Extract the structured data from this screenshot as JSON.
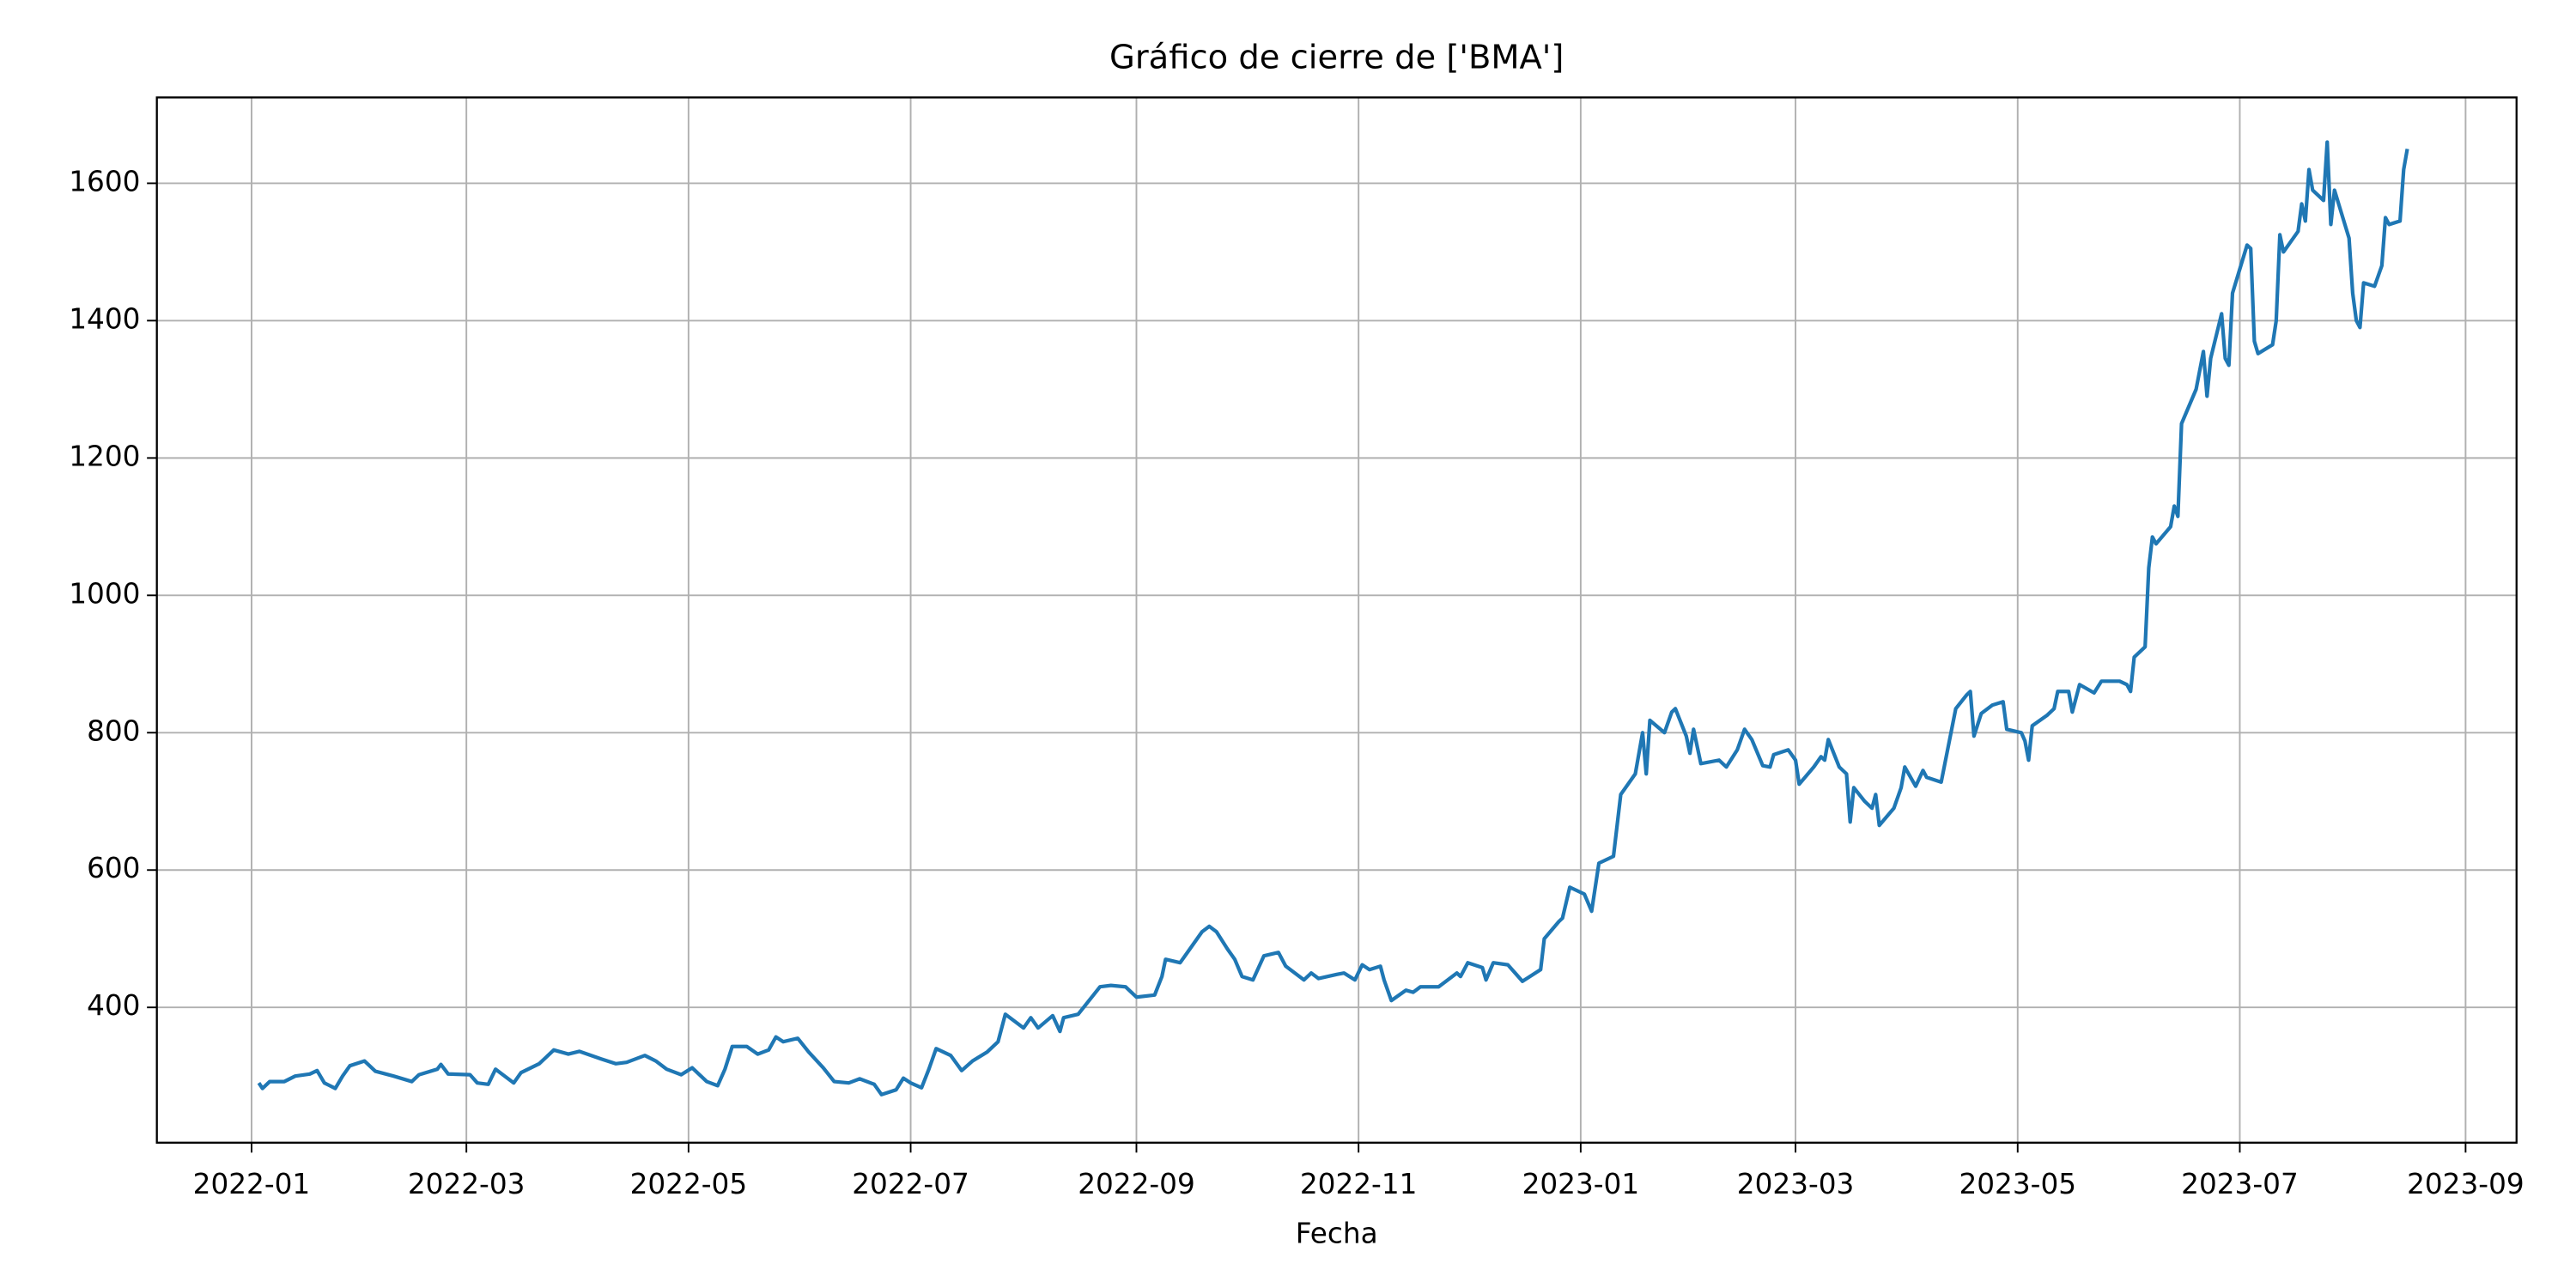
{
  "chart_data": {
    "type": "line",
    "title": "Gráfico de cierre de ['BMA']",
    "x_label": "Fecha",
    "color": "#1f77b4",
    "grid": true,
    "xlim": [
      "2021-12-06",
      "2023-09-15"
    ],
    "xticks": [
      "2022-01",
      "2022-03",
      "2022-05",
      "2022-07",
      "2022-09",
      "2022-11",
      "2023-01",
      "2023-03",
      "2023-05",
      "2023-07",
      "2023-09"
    ],
    "ylim": [
      203,
      1725
    ],
    "yticks": [
      400,
      600,
      800,
      1000,
      1200,
      1400,
      1600
    ],
    "x": [
      "2022-01-03",
      "2022-01-04",
      "2022-01-06",
      "2022-01-10",
      "2022-01-13",
      "2022-01-17",
      "2022-01-19",
      "2022-01-21",
      "2022-01-24",
      "2022-01-26",
      "2022-01-28",
      "2022-02-01",
      "2022-02-04",
      "2022-02-09",
      "2022-02-14",
      "2022-02-16",
      "2022-02-21",
      "2022-02-22",
      "2022-02-24",
      "2022-03-02",
      "2022-03-04",
      "2022-03-07",
      "2022-03-09",
      "2022-03-14",
      "2022-03-16",
      "2022-03-21",
      "2022-03-25",
      "2022-03-29",
      "2022-04-01",
      "2022-04-07",
      "2022-04-11",
      "2022-04-14",
      "2022-04-19",
      "2022-04-22",
      "2022-04-25",
      "2022-04-29",
      "2022-05-02",
      "2022-05-06",
      "2022-05-09",
      "2022-05-11",
      "2022-05-13",
      "2022-05-17",
      "2022-05-20",
      "2022-05-23",
      "2022-05-25",
      "2022-05-27",
      "2022-05-31",
      "2022-06-03",
      "2022-06-07",
      "2022-06-10",
      "2022-06-14",
      "2022-06-17",
      "2022-06-21",
      "2022-06-23",
      "2022-06-27",
      "2022-06-29",
      "2022-07-01",
      "2022-07-04",
      "2022-07-06",
      "2022-07-08",
      "2022-07-12",
      "2022-07-15",
      "2022-07-18",
      "2022-07-22",
      "2022-07-25",
      "2022-07-27",
      "2022-08-01",
      "2022-08-03",
      "2022-08-05",
      "2022-08-09",
      "2022-08-11",
      "2022-08-12",
      "2022-08-16",
      "2022-08-19",
      "2022-08-22",
      "2022-08-25",
      "2022-08-29",
      "2022-09-01",
      "2022-09-06",
      "2022-09-08",
      "2022-09-09",
      "2022-09-13",
      "2022-09-15",
      "2022-09-19",
      "2022-09-21",
      "2022-09-23",
      "2022-09-26",
      "2022-09-28",
      "2022-09-30",
      "2022-10-03",
      "2022-10-06",
      "2022-10-10",
      "2022-10-12",
      "2022-10-17",
      "2022-10-19",
      "2022-10-21",
      "2022-10-26",
      "2022-10-28",
      "2022-10-31",
      "2022-11-02",
      "2022-11-04",
      "2022-11-07",
      "2022-11-08",
      "2022-11-10",
      "2022-11-14",
      "2022-11-16",
      "2022-11-18",
      "2022-11-23",
      "2022-11-28",
      "2022-11-29",
      "2022-12-01",
      "2022-12-05",
      "2022-12-06",
      "2022-12-08",
      "2022-12-12",
      "2022-12-14",
      "2022-12-16",
      "2022-12-21",
      "2022-12-22",
      "2022-12-26",
      "2022-12-27",
      "2022-12-29",
      "2023-01-02",
      "2023-01-04",
      "2023-01-06",
      "2023-01-10",
      "2023-01-12",
      "2023-01-16",
      "2023-01-18",
      "2023-01-19",
      "2023-01-20",
      "2023-01-24",
      "2023-01-26",
      "2023-01-27",
      "2023-01-30",
      "2023-01-31",
      "2023-02-01",
      "2023-02-03",
      "2023-02-08",
      "2023-02-10",
      "2023-02-13",
      "2023-02-15",
      "2023-02-17",
      "2023-02-20",
      "2023-02-22",
      "2023-02-23",
      "2023-02-27",
      "2023-03-01",
      "2023-03-02",
      "2023-03-06",
      "2023-03-08",
      "2023-03-09",
      "2023-03-10",
      "2023-03-13",
      "2023-03-15",
      "2023-03-16",
      "2023-03-17",
      "2023-03-20",
      "2023-03-22",
      "2023-03-23",
      "2023-03-24",
      "2023-03-28",
      "2023-03-30",
      "2023-03-31",
      "2023-04-03",
      "2023-04-05",
      "2023-04-06",
      "2023-04-10",
      "2023-04-14",
      "2023-04-17",
      "2023-04-18",
      "2023-04-19",
      "2023-04-21",
      "2023-04-24",
      "2023-04-27",
      "2023-04-28",
      "2023-05-02",
      "2023-05-03",
      "2023-05-04",
      "2023-05-05",
      "2023-05-09",
      "2023-05-11",
      "2023-05-12",
      "2023-05-15",
      "2023-05-16",
      "2023-05-18",
      "2023-05-22",
      "2023-05-24",
      "2023-05-29",
      "2023-05-31",
      "2023-06-01",
      "2023-06-02",
      "2023-06-05",
      "2023-06-06",
      "2023-06-07",
      "2023-06-08",
      "2023-06-12",
      "2023-06-13",
      "2023-06-14",
      "2023-06-15",
      "2023-06-19",
      "2023-06-21",
      "2023-06-22",
      "2023-06-23",
      "2023-06-26",
      "2023-06-27",
      "2023-06-28",
      "2023-06-29",
      "2023-07-03",
      "2023-07-04",
      "2023-07-05",
      "2023-07-06",
      "2023-07-10",
      "2023-07-11",
      "2023-07-12",
      "2023-07-13",
      "2023-07-17",
      "2023-07-18",
      "2023-07-19",
      "2023-07-20",
      "2023-07-21",
      "2023-07-24",
      "2023-07-25",
      "2023-07-26",
      "2023-07-27",
      "2023-07-31",
      "2023-08-01",
      "2023-08-02",
      "2023-08-03",
      "2023-08-04",
      "2023-08-07",
      "2023-08-09",
      "2023-08-10",
      "2023-08-11",
      "2023-08-14",
      "2023-08-15",
      "2023-08-16"
    ],
    "values": [
      290,
      282,
      292,
      292,
      300,
      303,
      308,
      290,
      282,
      300,
      315,
      322,
      307,
      300,
      292,
      302,
      310,
      317,
      303,
      302,
      290,
      288,
      310,
      290,
      305,
      318,
      338,
      332,
      336,
      325,
      318,
      320,
      330,
      322,
      310,
      302,
      312,
      292,
      286,
      310,
      343,
      343,
      332,
      338,
      357,
      350,
      355,
      335,
      312,
      292,
      290,
      296,
      288,
      273,
      280,
      297,
      290,
      283,
      310,
      340,
      330,
      308,
      322,
      335,
      350,
      390,
      370,
      385,
      370,
      388,
      365,
      385,
      390,
      410,
      430,
      432,
      430,
      415,
      418,
      445,
      470,
      465,
      480,
      510,
      518,
      510,
      485,
      470,
      445,
      440,
      475,
      480,
      460,
      440,
      450,
      442,
      448,
      450,
      440,
      462,
      455,
      460,
      440,
      410,
      425,
      422,
      430,
      430,
      450,
      445,
      465,
      458,
      440,
      465,
      462,
      450,
      438,
      455,
      500,
      525,
      530,
      575,
      565,
      540,
      610,
      620,
      710,
      740,
      800,
      740,
      818,
      800,
      830,
      835,
      795,
      770,
      805,
      755,
      760,
      750,
      775,
      805,
      790,
      752,
      750,
      768,
      775,
      760,
      725,
      750,
      765,
      760,
      790,
      750,
      740,
      670,
      720,
      700,
      690,
      710,
      665,
      690,
      720,
      750,
      722,
      745,
      735,
      728,
      835,
      855,
      860,
      795,
      828,
      840,
      845,
      805,
      800,
      788,
      760,
      810,
      825,
      835,
      860,
      860,
      830,
      870,
      858,
      875,
      875,
      870,
      860,
      910,
      925,
      1040,
      1085,
      1075,
      1100,
      1130,
      1115,
      1250,
      1300,
      1355,
      1290,
      1345,
      1410,
      1345,
      1335,
      1440,
      1510,
      1505,
      1370,
      1352,
      1365,
      1400,
      1525,
      1500,
      1530,
      1570,
      1545,
      1620,
      1590,
      1575,
      1660,
      1540,
      1590,
      1520,
      1440,
      1400,
      1390,
      1455,
      1450,
      1480,
      1550,
      1540,
      1545,
      1620,
      1650
    ]
  }
}
